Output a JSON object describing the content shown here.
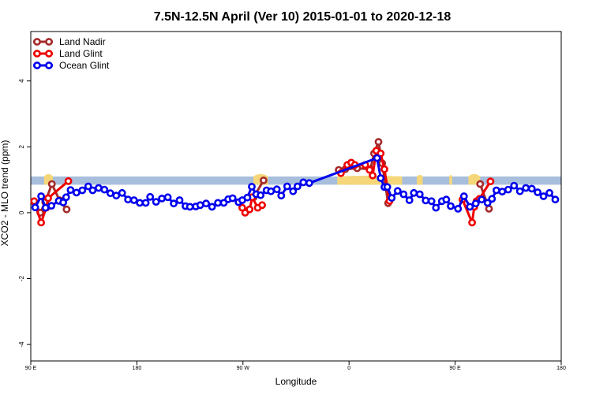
{
  "chart_data": {
    "type": "line",
    "title": "7.5N-12.5N April (Ver 10)   2015-01-01 to 2020-12-18",
    "xlabel": "Longitude",
    "ylabel": "XCO2 - MLO trend (ppm)",
    "xlim": [
      90,
      450
    ],
    "ylim": [
      -4.5,
      5.5
    ],
    "x_ticks": [
      {
        "value": 90,
        "label": "90 E"
      },
      {
        "value": 162,
        "label": "180"
      },
      {
        "value": 234,
        "label": "90 W"
      },
      {
        "value": 306,
        "label": "0"
      },
      {
        "value": 378,
        "label": "90 E"
      },
      {
        "value": 450,
        "label": "180"
      }
    ],
    "y_ticks": [
      {
        "value": -4,
        "label": "-4"
      },
      {
        "value": -2,
        "label": "-2"
      },
      {
        "value": 0,
        "label": "0"
      },
      {
        "value": 2,
        "label": "2"
      },
      {
        "value": 4,
        "label": "4"
      }
    ],
    "background_band": {
      "y_low": 0.85,
      "y_high": 1.1,
      "color": "#a7bedc"
    },
    "land_mask": {
      "color": "#f5d77a",
      "segments": [
        {
          "x_start": 99,
          "x_end": 105,
          "y_top": 1.25
        },
        {
          "x_start": 241,
          "x_end": 251,
          "y_top": 1.25
        },
        {
          "x_start": 298,
          "x_end": 342,
          "y_top": 1.15
        },
        {
          "x_start": 352,
          "x_end": 356,
          "y_top": 1.2
        },
        {
          "x_start": 374,
          "x_end": 376,
          "y_top": 1.2
        },
        {
          "x_start": 387,
          "x_end": 395,
          "y_top": 1.25
        }
      ]
    },
    "legend": {
      "position": "top-left"
    },
    "series": [
      {
        "name": "Land Nadir",
        "color": "#a52a2a",
        "segments": [
          [
            [
              92.5,
              0.31
            ],
            [
              96.5,
              0.0
            ],
            [
              99.8,
              0.32
            ],
            [
              104.3,
              0.87
            ],
            [
              109.5,
              0.38
            ],
            [
              114.3,
              0.1
            ]
          ],
          [
            [
              241.3,
              0.47
            ],
            [
              248.0,
              0.98
            ]
          ],
          [
            [
              299.0,
              1.3
            ],
            [
              303.5,
              1.32
            ],
            [
              311.5,
              1.35
            ],
            [
              320.5,
              1.32
            ],
            [
              323.0,
              1.8
            ],
            [
              326.0,
              2.15
            ],
            [
              328.5,
              1.5
            ],
            [
              332.5,
              0.29
            ]
          ],
          [
            [
              395.0,
              0.87
            ],
            [
              401.0,
              0.12
            ]
          ]
        ]
      },
      {
        "name": "Land Glint",
        "color": "#ee0000",
        "segments": [
          [
            [
              92.3,
              0.35
            ],
            [
              97.0,
              -0.3
            ],
            [
              100.5,
              0.15
            ],
            [
              101.8,
              0.44
            ],
            [
              115.5,
              0.96
            ]
          ],
          [
            [
              233.5,
              0.15
            ],
            [
              235.5,
              0.0
            ],
            [
              238.5,
              0.1
            ],
            [
              240.3,
              0.47
            ],
            [
              244.0,
              0.15
            ],
            [
              247.0,
              0.23
            ]
          ],
          [
            [
              300.5,
              1.2
            ],
            [
              304.8,
              1.45
            ],
            [
              307.5,
              1.52
            ],
            [
              310.0,
              1.45
            ],
            [
              317.0,
              1.45
            ],
            [
              320.0,
              1.3
            ],
            [
              322.0,
              1.13
            ],
            [
              324.5,
              1.88
            ],
            [
              327.5,
              1.8
            ],
            [
              330.0,
              1.32
            ],
            [
              333.5,
              0.36
            ]
          ],
          [
            [
              383.0,
              0.4
            ],
            [
              389.5,
              -0.3
            ],
            [
              391.0,
              0.18
            ],
            [
              392.5,
              0.35
            ],
            [
              394.5,
              0.42
            ],
            [
              402.0,
              0.95
            ]
          ]
        ]
      },
      {
        "name": "Ocean Glint",
        "color": "#0000ee",
        "segments": [
          [
            [
              93.0,
              0.16
            ],
            [
              97.0,
              0.5
            ],
            [
              100.0,
              0.15
            ],
            [
              104.0,
              0.21
            ],
            [
              109.0,
              0.36
            ],
            [
              112.0,
              0.31
            ],
            [
              114.0,
              0.47
            ],
            [
              117.0,
              0.69
            ],
            [
              121.0,
              0.61
            ],
            [
              125.0,
              0.68
            ],
            [
              129.0,
              0.8
            ],
            [
              132.0,
              0.68
            ],
            [
              136.0,
              0.75
            ],
            [
              140.0,
              0.7
            ],
            [
              144.0,
              0.59
            ],
            [
              148.0,
              0.52
            ],
            [
              152.0,
              0.6
            ],
            [
              156.0,
              0.4
            ],
            [
              160.0,
              0.38
            ],
            [
              164.0,
              0.3
            ],
            [
              168.0,
              0.3
            ],
            [
              171.0,
              0.48
            ],
            [
              175.0,
              0.33
            ],
            [
              179.0,
              0.43
            ],
            [
              183.0,
              0.47
            ],
            [
              187.0,
              0.28
            ],
            [
              191.0,
              0.38
            ],
            [
              195.0,
              0.2
            ],
            [
              198.0,
              0.18
            ],
            [
              202.0,
              0.19
            ],
            [
              205.0,
              0.23
            ],
            [
              209.0,
              0.28
            ],
            [
              213.0,
              0.18
            ],
            [
              217.0,
              0.3
            ],
            [
              221.0,
              0.3
            ],
            [
              224.0,
              0.41
            ],
            [
              227.0,
              0.44
            ],
            [
              231.0,
              0.32
            ],
            [
              233.5,
              0.38
            ],
            [
              237.0,
              0.46
            ],
            [
              240.0,
              0.79
            ],
            [
              243.0,
              0.56
            ],
            [
              246.0,
              0.53
            ],
            [
              250.0,
              0.68
            ],
            [
              253.0,
              0.65
            ],
            [
              257.0,
              0.71
            ],
            [
              260.0,
              0.52
            ],
            [
              264.0,
              0.8
            ],
            [
              268.0,
              0.65
            ],
            [
              271.0,
              0.8
            ],
            [
              275.0,
              0.92
            ],
            [
              279.0,
              0.9
            ],
            [
              325.0,
              1.66
            ],
            [
              327.5,
              1.05
            ],
            [
              330.0,
              0.78
            ],
            [
              332.0,
              0.78
            ],
            [
              335.0,
              0.45
            ],
            [
              339.0,
              0.66
            ],
            [
              343.0,
              0.56
            ],
            [
              347.0,
              0.38
            ],
            [
              350.0,
              0.6
            ],
            [
              354.0,
              0.56
            ],
            [
              358.0,
              0.37
            ],
            [
              362.0,
              0.35
            ],
            [
              365.0,
              0.15
            ],
            [
              369.0,
              0.35
            ],
            [
              372.0,
              0.4
            ],
            [
              375.0,
              0.2
            ],
            [
              380.0,
              0.12
            ],
            [
              384.0,
              0.5
            ],
            [
              388.0,
              0.18
            ],
            [
              392.0,
              0.28
            ],
            [
              396.0,
              0.4
            ],
            [
              400.0,
              0.3
            ],
            [
              403.0,
              0.42
            ],
            [
              406.0,
              0.68
            ],
            [
              410.0,
              0.64
            ],
            [
              414.0,
              0.7
            ],
            [
              418.0,
              0.82
            ],
            [
              422.0,
              0.65
            ],
            [
              426.0,
              0.75
            ],
            [
              430.0,
              0.73
            ],
            [
              434.0,
              0.62
            ],
            [
              438.0,
              0.5
            ],
            [
              442.0,
              0.6
            ],
            [
              446.0,
              0.4
            ]
          ]
        ]
      }
    ]
  }
}
